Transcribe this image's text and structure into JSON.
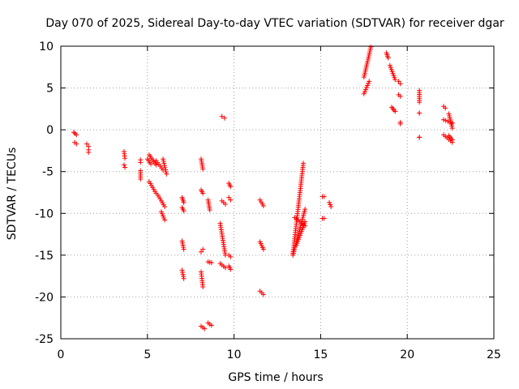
{
  "chart_data": {
    "type": "scatter",
    "title": "Day 070 of 2025, Sidereal Day-to-day VTEC variation (SDTVAR) for receiver dgar",
    "xlabel": "GPS time / hours",
    "ylabel": "SDTVAR / TECUs",
    "xlim": [
      0,
      25
    ],
    "ylim": [
      -25,
      10
    ],
    "xticks": [
      0,
      5,
      10,
      15,
      20,
      25
    ],
    "yticks": [
      -25,
      -20,
      -15,
      -10,
      -5,
      0,
      5,
      10
    ],
    "xtick_labels": [
      "0",
      "5",
      "10",
      "15",
      "20",
      "25"
    ],
    "ytick_labels": [
      "-25",
      "-20",
      "-15",
      "-10",
      "-5",
      "0",
      "5",
      "10"
    ],
    "grid": true,
    "marker": "+",
    "series": [
      {
        "name": "SDTVAR",
        "color": "#ff0000",
        "segments": [
          {
            "x0": 0.75,
            "y0": -0.3,
            "x1": 0.9,
            "y1": -0.6
          },
          {
            "x0": 0.8,
            "y0": -1.5,
            "x1": 0.9,
            "y1": -1.7
          },
          {
            "x0": 1.5,
            "y0": -1.7,
            "x1": 1.6,
            "y1": -2.0
          },
          {
            "x0": 1.6,
            "y0": -2.4,
            "x1": 1.6,
            "y1": -2.7
          },
          {
            "x0": 3.65,
            "y0": -2.6,
            "x1": 3.7,
            "y1": -3.4
          },
          {
            "x0": 3.65,
            "y0": -4.2,
            "x1": 3.7,
            "y1": -4.5
          },
          {
            "x0": 4.6,
            "y0": -3.6,
            "x1": 4.6,
            "y1": -3.9
          },
          {
            "x0": 4.6,
            "y0": -4.9,
            "x1": 4.6,
            "y1": -5.9
          },
          {
            "x0": 5.1,
            "y0": -3.0,
            "x1": 5.5,
            "y1": -4.2
          },
          {
            "x0": 5.0,
            "y0": -3.5,
            "x1": 5.2,
            "y1": -4.1
          },
          {
            "x0": 5.1,
            "y0": -6.2,
            "x1": 5.5,
            "y1": -7.6
          },
          {
            "x0": 5.5,
            "y0": -3.7,
            "x1": 5.9,
            "y1": -4.8
          },
          {
            "x0": 5.9,
            "y0": -3.5,
            "x1": 6.1,
            "y1": -5.3
          },
          {
            "x0": 5.6,
            "y0": -7.8,
            "x1": 6.0,
            "y1": -9.2
          },
          {
            "x0": 5.8,
            "y0": -9.8,
            "x1": 6.0,
            "y1": -10.8
          },
          {
            "x0": 7.0,
            "y0": -8.1,
            "x1": 7.1,
            "y1": -8.7
          },
          {
            "x0": 7.0,
            "y0": -9.3,
            "x1": 7.1,
            "y1": -9.7
          },
          {
            "x0": 7.0,
            "y0": -13.3,
            "x1": 7.1,
            "y1": -14.3
          },
          {
            "x0": 7.0,
            "y0": -16.8,
            "x1": 7.1,
            "y1": -17.8
          },
          {
            "x0": 8.1,
            "y0": -3.5,
            "x1": 8.2,
            "y1": -4.7
          },
          {
            "x0": 8.1,
            "y0": -7.2,
            "x1": 8.2,
            "y1": -7.6
          },
          {
            "x0": 8.1,
            "y0": -14.6,
            "x1": 8.2,
            "y1": -14.3
          },
          {
            "x0": 8.1,
            "y0": -17.0,
            "x1": 8.2,
            "y1": -18.8
          },
          {
            "x0": 8.1,
            "y0": -23.5,
            "x1": 8.3,
            "y1": -23.8
          },
          {
            "x0": 8.5,
            "y0": -8.4,
            "x1": 8.6,
            "y1": -9.6
          },
          {
            "x0": 8.5,
            "y0": -15.8,
            "x1": 8.7,
            "y1": -15.9
          },
          {
            "x0": 8.5,
            "y0": -23.1,
            "x1": 8.7,
            "y1": -23.4
          },
          {
            "x0": 9.3,
            "y0": 1.6,
            "x1": 9.45,
            "y1": 1.4
          },
          {
            "x0": 9.3,
            "y0": -8.5,
            "x1": 9.5,
            "y1": -8.9
          },
          {
            "x0": 9.2,
            "y0": -11.2,
            "x1": 9.5,
            "y1": -15.0
          },
          {
            "x0": 9.2,
            "y0": -16.0,
            "x1": 9.5,
            "y1": -16.5
          },
          {
            "x0": 9.7,
            "y0": -6.4,
            "x1": 9.8,
            "y1": -6.8
          },
          {
            "x0": 9.7,
            "y0": -8.1,
            "x1": 9.8,
            "y1": -8.4
          },
          {
            "x0": 9.7,
            "y0": -15.0,
            "x1": 9.8,
            "y1": -15.2
          },
          {
            "x0": 9.7,
            "y0": -16.3,
            "x1": 9.8,
            "y1": -16.7
          },
          {
            "x0": 11.5,
            "y0": -8.4,
            "x1": 11.7,
            "y1": -9.1
          },
          {
            "x0": 11.5,
            "y0": -13.4,
            "x1": 11.7,
            "y1": -14.3
          },
          {
            "x0": 11.5,
            "y0": -19.3,
            "x1": 11.7,
            "y1": -19.7
          },
          {
            "x0": 13.4,
            "y0": -14.8,
            "x1": 14.0,
            "y1": -4.0
          },
          {
            "x0": 13.4,
            "y0": -15.0,
            "x1": 14.1,
            "y1": -9.5
          },
          {
            "x0": 13.5,
            "y0": -10.5,
            "x1": 14.1,
            "y1": -11.5
          },
          {
            "x0": 13.6,
            "y0": -13.8,
            "x1": 14.1,
            "y1": -11.0
          },
          {
            "x0": 15.1,
            "y0": -8.0,
            "x1": 15.2,
            "y1": -8.0
          },
          {
            "x0": 15.1,
            "y0": -10.6,
            "x1": 15.2,
            "y1": -10.6
          },
          {
            "x0": 15.5,
            "y0": -8.7,
            "x1": 15.6,
            "y1": -9.2
          },
          {
            "x0": 17.5,
            "y0": 6.3,
            "x1": 17.9,
            "y1": 9.9
          },
          {
            "x0": 17.5,
            "y0": 4.3,
            "x1": 17.8,
            "y1": 5.8
          },
          {
            "x0": 18.8,
            "y0": 9.2,
            "x1": 18.9,
            "y1": 8.6
          },
          {
            "x0": 19.0,
            "y0": 7.7,
            "x1": 19.3,
            "y1": 6.0
          },
          {
            "x0": 19.1,
            "y0": 2.7,
            "x1": 19.3,
            "y1": 2.2
          },
          {
            "x0": 19.5,
            "y0": 5.8,
            "x1": 19.6,
            "y1": 5.5
          },
          {
            "x0": 19.5,
            "y0": 4.2,
            "x1": 19.6,
            "y1": 4.0
          },
          {
            "x0": 19.6,
            "y0": 0.9,
            "x1": 19.6,
            "y1": 0.7
          },
          {
            "x0": 20.7,
            "y0": 4.7,
            "x1": 20.7,
            "y1": 3.3
          },
          {
            "x0": 20.7,
            "y0": 2.0,
            "x1": 20.7,
            "y1": 2.0
          },
          {
            "x0": 20.7,
            "y0": -0.9,
            "x1": 20.7,
            "y1": -0.9
          },
          {
            "x0": 22.1,
            "y0": 2.8,
            "x1": 22.2,
            "y1": 2.6
          },
          {
            "x0": 22.1,
            "y0": 1.2,
            "x1": 22.6,
            "y1": 0.8
          },
          {
            "x0": 22.1,
            "y0": -0.6,
            "x1": 22.6,
            "y1": -1.5
          },
          {
            "x0": 22.4,
            "y0": 1.9,
            "x1": 22.6,
            "y1": 0.2
          },
          {
            "x0": 22.4,
            "y0": -0.7,
            "x1": 22.6,
            "y1": -1.2
          }
        ]
      }
    ]
  }
}
